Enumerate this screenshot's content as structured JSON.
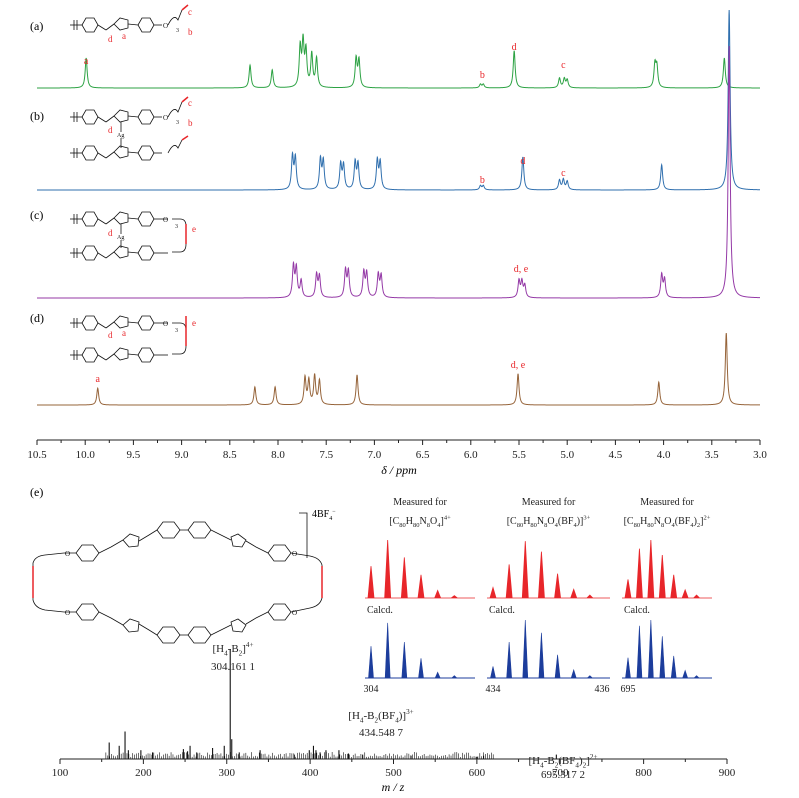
{
  "colors": {
    "green": "#2ca243",
    "blue": "#2f6fae",
    "purple": "#9439a6",
    "brown": "#96643a",
    "red": "#e8262a",
    "navy": "#1c3d9c",
    "black": "#111111"
  },
  "nmr": {
    "xlabel": "δ / ppm",
    "xlim": [
      10.5,
      3.0
    ],
    "ticks": [
      "10.5",
      "10.0",
      "9.5",
      "9.0",
      "8.5",
      "8.0",
      "7.5",
      "7.0",
      "6.5",
      "6.0",
      "5.5",
      "5.0",
      "4.5",
      "4.0",
      "3.5",
      "3.0"
    ]
  },
  "chart_data": [
    {
      "type": "line",
      "title": "",
      "xlabel": "δ / ppm",
      "xlim": [
        10.5,
        3.0
      ],
      "series": [
        {
          "name": "(a)",
          "color": "#2ca243",
          "peaks": [
            [
              9.99,
              0.5
            ],
            [
              8.29,
              0.38
            ],
            [
              8.06,
              0.3
            ],
            [
              7.77,
              0.65
            ],
            [
              7.74,
              0.72
            ],
            [
              7.71,
              0.58
            ],
            [
              7.65,
              0.55
            ],
            [
              7.6,
              0.48
            ],
            [
              7.19,
              0.48
            ],
            [
              7.16,
              0.45
            ],
            [
              5.9,
              0.06
            ],
            [
              5.87,
              0.06
            ],
            [
              5.55,
              0.62
            ],
            [
              5.08,
              0.16
            ],
            [
              5.03,
              0.15
            ],
            [
              5.0,
              0.13
            ],
            [
              4.09,
              0.38
            ],
            [
              4.07,
              0.34
            ],
            [
              3.37,
              0.5
            ]
          ]
        },
        {
          "name": "(b)",
          "color": "#2f6fae",
          "peaks": [
            [
              7.85,
              0.55
            ],
            [
              7.82,
              0.52
            ],
            [
              7.56,
              0.5
            ],
            [
              7.53,
              0.47
            ],
            [
              7.35,
              0.42
            ],
            [
              7.32,
              0.4
            ],
            [
              7.2,
              0.45
            ],
            [
              7.17,
              0.42
            ],
            [
              6.97,
              0.48
            ],
            [
              6.94,
              0.45
            ],
            [
              5.9,
              0.07
            ],
            [
              5.87,
              0.07
            ],
            [
              5.46,
              0.55
            ],
            [
              5.08,
              0.16
            ],
            [
              5.04,
              0.17
            ],
            [
              5.0,
              0.14
            ],
            [
              4.02,
              0.42
            ],
            [
              3.32,
              3.0
            ]
          ]
        },
        {
          "name": "(c)",
          "color": "#9439a6",
          "peaks": [
            [
              7.84,
              0.52
            ],
            [
              7.81,
              0.48
            ],
            [
              7.76,
              0.28
            ],
            [
              7.6,
              0.38
            ],
            [
              7.57,
              0.35
            ],
            [
              7.3,
              0.45
            ],
            [
              7.27,
              0.43
            ],
            [
              7.11,
              0.42
            ],
            [
              7.08,
              0.4
            ],
            [
              6.96,
              0.38
            ],
            [
              6.93,
              0.36
            ],
            [
              5.5,
              0.28
            ],
            [
              5.47,
              0.26
            ],
            [
              5.44,
              0.2
            ],
            [
              4.02,
              0.38
            ],
            [
              3.99,
              0.3
            ],
            [
              3.32,
              4.2
            ]
          ]
        },
        {
          "name": "(d)",
          "color": "#96643a",
          "peaks": [
            [
              9.87,
              0.28
            ],
            [
              8.24,
              0.3
            ],
            [
              8.03,
              0.3
            ],
            [
              7.72,
              0.45
            ],
            [
              7.68,
              0.4
            ],
            [
              7.62,
              0.48
            ],
            [
              7.57,
              0.4
            ],
            [
              7.18,
              0.5
            ],
            [
              5.51,
              0.52
            ],
            [
              4.05,
              0.38
            ],
            [
              3.35,
              1.2
            ]
          ]
        }
      ]
    },
    {
      "type": "bar",
      "title": "",
      "xlabel": "m / z",
      "xlim": [
        100,
        900
      ],
      "peaks_mz": [
        159,
        171,
        178,
        182,
        197,
        211,
        248,
        253,
        256,
        264,
        283,
        297,
        304.16,
        306,
        315,
        340,
        381,
        399,
        404,
        407,
        412,
        419,
        434.55,
        446,
        463,
        521,
        600,
        608,
        695.32
      ],
      "peaks_intensity": [
        0.15,
        0.12,
        0.25,
        0.08,
        0.08,
        0.06,
        0.09,
        0.07,
        0.12,
        0.06,
        0.1,
        0.12,
        1.0,
        0.18,
        0.06,
        0.08,
        0.04,
        0.08,
        0.12,
        0.08,
        0.06,
        0.08,
        0.08,
        0.05,
        0.04,
        0.03,
        0.02,
        0.03,
        0.04
      ]
    }
  ],
  "panels": {
    "a": {
      "label": "(a)",
      "peaks": [
        {
          "letter": "a",
          "ppm": 9.99
        },
        {
          "letter": "b",
          "ppm": 5.88
        },
        {
          "letter": "d",
          "ppm": 5.55
        },
        {
          "letter": "c",
          "ppm": 5.04
        }
      ],
      "struct_letters": {
        "d": "d",
        "a": "a",
        "c": "c",
        "b": "b",
        "o": "O",
        "three": "3"
      }
    },
    "b": {
      "label": "(b)",
      "peaks": [
        {
          "letter": "b",
          "ppm": 5.88
        },
        {
          "letter": "d",
          "ppm": 5.46
        },
        {
          "letter": "c",
          "ppm": 5.04
        }
      ],
      "struct_letters": {
        "d": "d",
        "ag": "Ag",
        "c": "c",
        "b": "b",
        "o": "O",
        "three": "3"
      }
    },
    "c": {
      "label": "(c)",
      "peaks": [
        {
          "letter": "d, e",
          "ppm": 5.48
        }
      ],
      "struct_letters": {
        "d": "d",
        "ag": "Ag",
        "e": "e",
        "o": "O",
        "three": "3"
      }
    },
    "d": {
      "label": "(d)",
      "peaks": [
        {
          "letter": "a",
          "ppm": 9.87
        },
        {
          "letter": "d, e",
          "ppm": 5.51
        }
      ],
      "struct_letters": {
        "d": "d",
        "a": "a",
        "e": "e",
        "o": "O",
        "three": "3"
      }
    }
  },
  "ms": {
    "label": "(e)",
    "xlabel": "m / z",
    "xlim": [
      100,
      900
    ],
    "ticks": [
      "100",
      "200",
      "300",
      "400",
      "500",
      "600",
      "700",
      "800",
      "900"
    ],
    "macrocycle_counterion": "4BF",
    "macrocycle_o": "O",
    "annotations": [
      {
        "ion": "[H4-B2]4+",
        "value": "304.161 1",
        "mz": 304.16
      },
      {
        "ion": "[H4-B2(BF4)]3+",
        "value": "434.548 7",
        "mz": 434.55
      },
      {
        "ion": "[H4-B2(BF4)2]2+",
        "value": "695.317 2",
        "mz": 695.32
      }
    ],
    "measured_for": "Measured for",
    "calcd": "Calcd.",
    "insets": [
      {
        "formula": "[C80H80N8O4]4+",
        "measured": [
          0.55,
          0.95,
          0.62,
          0.34,
          0.1,
          0.04
        ],
        "calcd": [
          0.55,
          1.0,
          0.7,
          0.4,
          0.13,
          0.04
        ],
        "low": "304",
        "high": ""
      },
      {
        "formula": "[C80H80N8O4(BF4)]3+",
        "measured": [
          0.2,
          0.62,
          1.0,
          0.78,
          0.4,
          0.14,
          0.04
        ],
        "calcd": [
          0.18,
          0.58,
          0.98,
          0.8,
          0.42,
          0.15,
          0.05
        ],
        "low": "434",
        "high": "436"
      },
      {
        "formula": "[C80H80N8O4(BF4)2]2+",
        "measured": [
          0.35,
          0.9,
          1.0,
          0.72,
          0.38,
          0.13,
          0.04
        ],
        "calcd": [
          0.32,
          0.85,
          1.0,
          0.74,
          0.4,
          0.14,
          0.05
        ],
        "low": "695",
        "high": ""
      }
    ]
  }
}
